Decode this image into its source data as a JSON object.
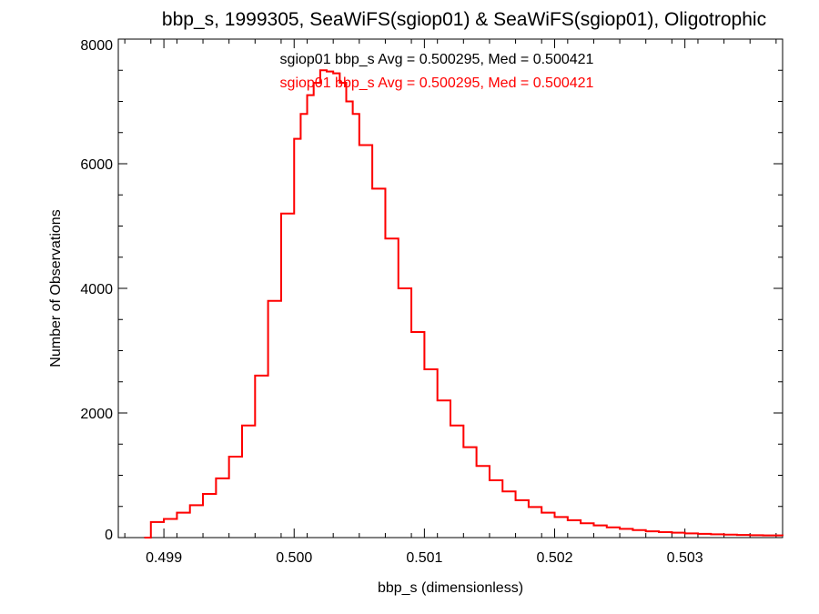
{
  "chart_data": {
    "type": "line",
    "title": "bbp_s, 1999305, SeaWiFS(sgiop01) & SeaWiFS(sgiop01), Oligotrophic",
    "xlabel": "bbp_s (dimensionless)",
    "ylabel": "Number of Observations",
    "xlim": [
      0.49865,
      0.50375
    ],
    "ylim": [
      0,
      8000
    ],
    "x_ticks": [
      0.499,
      0.5,
      0.501,
      0.502,
      0.503
    ],
    "x_tick_labels": [
      "0.499",
      "0.500",
      "0.501",
      "0.502",
      "0.503"
    ],
    "y_ticks": [
      0,
      2000,
      4000,
      6000,
      8000
    ],
    "y_tick_labels": [
      "0",
      "2000",
      "4000",
      "6000",
      "8000"
    ],
    "grid": false,
    "legend": "top-center",
    "series": [
      {
        "name": "sgiop01",
        "color": "#000000",
        "stat_label": "sgiop01 bbp_s Avg = 0.500295, Med = 0.500421",
        "x": [
          0.49885,
          0.4989,
          0.499,
          0.4991,
          0.4992,
          0.4993,
          0.4994,
          0.4995,
          0.4996,
          0.4997,
          0.4998,
          0.4999,
          0.5,
          0.50005,
          0.5001,
          0.50015,
          0.5002,
          0.50025,
          0.5003,
          0.50035,
          0.5004,
          0.50045,
          0.5005,
          0.5006,
          0.5007,
          0.5008,
          0.5009,
          0.501,
          0.5011,
          0.5012,
          0.5013,
          0.5014,
          0.5015,
          0.5016,
          0.5017,
          0.5018,
          0.5019,
          0.502,
          0.5021,
          0.5022,
          0.5023,
          0.5024,
          0.5025,
          0.5026,
          0.5027,
          0.5028,
          0.5029,
          0.503,
          0.5031,
          0.5032,
          0.5033,
          0.5034,
          0.5035,
          0.5036,
          0.50375
        ],
        "y": [
          0,
          250,
          300,
          400,
          520,
          700,
          950,
          1300,
          1800,
          2600,
          3800,
          5200,
          6400,
          6800,
          7100,
          7300,
          7500,
          7480,
          7450,
          7300,
          7000,
          6800,
          6300,
          5600,
          4800,
          4000,
          3300,
          2700,
          2200,
          1800,
          1450,
          1150,
          920,
          740,
          600,
          490,
          400,
          330,
          280,
          230,
          195,
          165,
          140,
          120,
          100,
          88,
          78,
          68,
          60,
          53,
          47,
          42,
          38,
          34,
          30
        ]
      },
      {
        "name": "sgiop01",
        "color": "#ff0000",
        "stat_label": "sgiop01 bbp_s Avg = 0.500295, Med = 0.500421",
        "x": [
          0.49885,
          0.4989,
          0.499,
          0.4991,
          0.4992,
          0.4993,
          0.4994,
          0.4995,
          0.4996,
          0.4997,
          0.4998,
          0.4999,
          0.5,
          0.50005,
          0.5001,
          0.50015,
          0.5002,
          0.50025,
          0.5003,
          0.50035,
          0.5004,
          0.50045,
          0.5005,
          0.5006,
          0.5007,
          0.5008,
          0.5009,
          0.501,
          0.5011,
          0.5012,
          0.5013,
          0.5014,
          0.5015,
          0.5016,
          0.5017,
          0.5018,
          0.5019,
          0.502,
          0.5021,
          0.5022,
          0.5023,
          0.5024,
          0.5025,
          0.5026,
          0.5027,
          0.5028,
          0.5029,
          0.503,
          0.5031,
          0.5032,
          0.5033,
          0.5034,
          0.5035,
          0.5036,
          0.50375
        ],
        "y": [
          0,
          250,
          300,
          400,
          520,
          700,
          950,
          1300,
          1800,
          2600,
          3800,
          5200,
          6400,
          6800,
          7100,
          7300,
          7500,
          7480,
          7450,
          7300,
          7000,
          6800,
          6300,
          5600,
          4800,
          4000,
          3300,
          2700,
          2200,
          1800,
          1450,
          1150,
          920,
          740,
          600,
          490,
          400,
          330,
          280,
          230,
          195,
          165,
          140,
          120,
          100,
          88,
          78,
          68,
          60,
          53,
          47,
          42,
          38,
          34,
          30
        ]
      }
    ]
  }
}
